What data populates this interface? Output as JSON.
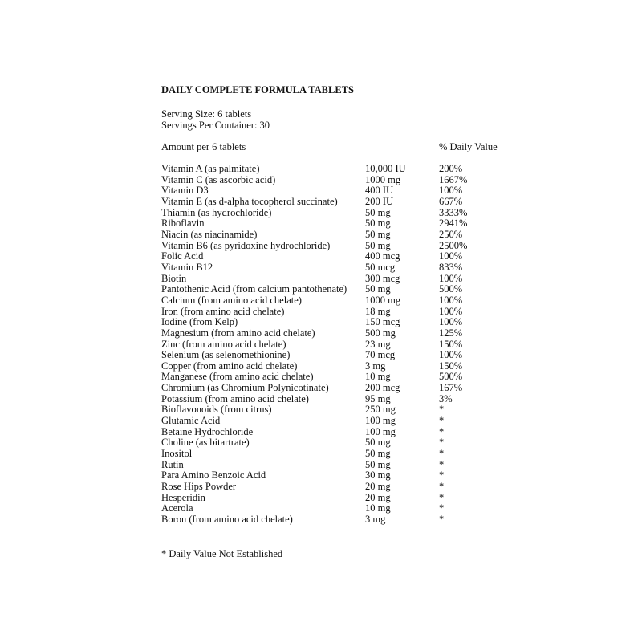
{
  "title": "DAILY COMPLETE FORMULA TABLETS",
  "serving_size": "Serving Size: 6 tablets",
  "servings_per_container": "Servings Per Container: 30",
  "amount_header": "Amount per 6 tablets",
  "dv_header": "% Daily Value",
  "rows": [
    {
      "name": "Vitamin A (as palmitate)",
      "amount": "10,000 IU",
      "dv": "200%"
    },
    {
      "name": "Vitamin C (as ascorbic acid)",
      "amount": "1000 mg",
      "dv": "1667%"
    },
    {
      "name": "Vitamin D3",
      "amount": "400 IU",
      "dv": "100%"
    },
    {
      "name": "Vitamin E (as d-alpha tocopherol succinate)",
      "amount": "200 IU",
      "dv": "667%"
    },
    {
      "name": "Thiamin (as hydrochloride)",
      "amount": "50 mg",
      "dv": "3333%"
    },
    {
      "name": "Riboflavin",
      "amount": "50 mg",
      "dv": "2941%"
    },
    {
      "name": "Niacin (as niacinamide)",
      "amount": "50 mg",
      "dv": "250%"
    },
    {
      "name": "Vitamin B6 (as pyridoxine hydrochloride)",
      "amount": "50 mg",
      "dv": "2500%"
    },
    {
      "name": "Folic Acid",
      "amount": "400 mcg",
      "dv": "100%"
    },
    {
      "name": "Vitamin B12",
      "amount": "50 mcg",
      "dv": "833%"
    },
    {
      "name": "Biotin",
      "amount": "300 mcg",
      "dv": "100%"
    },
    {
      "name": "Pantothenic Acid (from calcium pantothenate)",
      "amount": "50 mg",
      "dv": "500%"
    },
    {
      "name": "Calcium (from amino acid chelate)",
      "amount": "1000 mg",
      "dv": "100%"
    },
    {
      "name": "Iron (from amino acid chelate)",
      "amount": "18 mg",
      "dv": "100%"
    },
    {
      "name": "Iodine (from Kelp)",
      "amount": "150 mcg",
      "dv": "100%"
    },
    {
      "name": "Magnesium (from amino acid chelate)",
      "amount": "500 mg",
      "dv": "125%"
    },
    {
      "name": "Zinc (from amino acid chelate)",
      "amount": "23 mg",
      "dv": "150%"
    },
    {
      "name": "Selenium (as selenomethionine)",
      "amount": "70 mcg",
      "dv": "100%"
    },
    {
      "name": "Copper (from amino acid chelate)",
      "amount": "3 mg",
      "dv": "150%"
    },
    {
      "name": "Manganese (from amino acid chelate)",
      "amount": "10 mg",
      "dv": "500%"
    },
    {
      "name": "Chromium (as Chromium Polynicotinate)",
      "amount": "200 mcg",
      "dv": "167%"
    },
    {
      "name": "Potassium (from amino acid chelate)",
      "amount": "95 mg",
      "dv": "3%"
    },
    {
      "name": "Bioflavonoids (from citrus)",
      "amount": "250 mg",
      "dv": "*"
    },
    {
      "name": "Glutamic Acid",
      "amount": "100 mg",
      "dv": "*"
    },
    {
      "name": "Betaine Hydrochloride",
      "amount": "100 mg",
      "dv": "*"
    },
    {
      "name": "Choline (as bitartrate)",
      "amount": "50 mg",
      "dv": "*"
    },
    {
      "name": "Inositol",
      "amount": "50 mg",
      "dv": "*"
    },
    {
      "name": "Rutin",
      "amount": "50 mg",
      "dv": "*"
    },
    {
      "name": "Para Amino Benzoic Acid",
      "amount": "30 mg",
      "dv": "*"
    },
    {
      "name": "Rose Hips Powder",
      "amount": "20 mg",
      "dv": "*"
    },
    {
      "name": "Hesperidin",
      "amount": "20 mg",
      "dv": "*"
    },
    {
      "name": "Acerola",
      "amount": "10 mg",
      "dv": "*"
    },
    {
      "name": "Boron (from amino acid chelate)",
      "amount": "3 mg",
      "dv": "*"
    }
  ],
  "footnote": "* Daily Value Not Established"
}
